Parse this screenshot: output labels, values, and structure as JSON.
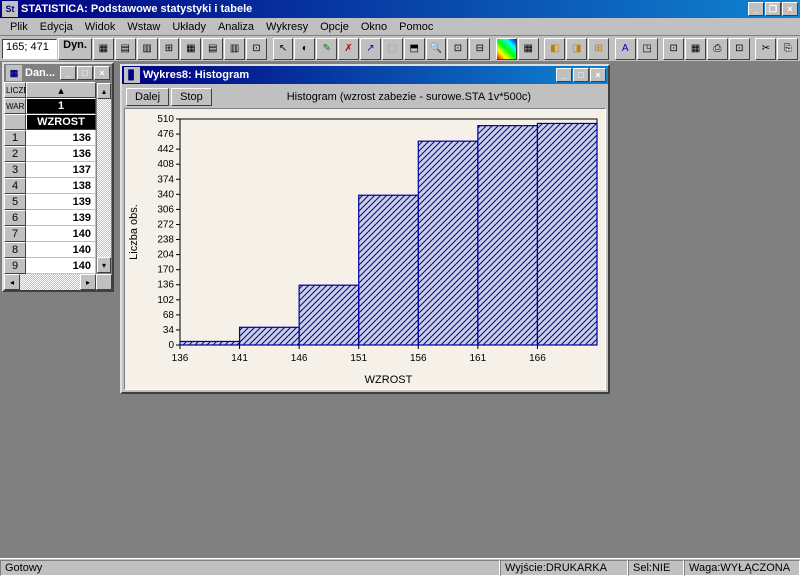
{
  "app": {
    "title": "STATISTICA: Podstawowe statystyki i tabele",
    "icon_label": "St"
  },
  "menu": {
    "items": [
      "Plik",
      "Edycja",
      "Widok",
      "Wstaw",
      "Układy",
      "Analiza",
      "Wykresy",
      "Opcje",
      "Okno",
      "Pomoc"
    ]
  },
  "toolbar": {
    "coord": "165; 471",
    "dyn": "Dyn."
  },
  "datawin": {
    "title": "Dan...",
    "corner1": "LICZE",
    "corner2": "WAR",
    "col_num": "1",
    "col_name": "WZROST",
    "rows": [
      {
        "n": "1",
        "v": "136"
      },
      {
        "n": "2",
        "v": "136"
      },
      {
        "n": "3",
        "v": "137"
      },
      {
        "n": "4",
        "v": "138"
      },
      {
        "n": "5",
        "v": "139"
      },
      {
        "n": "6",
        "v": "139"
      },
      {
        "n": "7",
        "v": "140"
      },
      {
        "n": "8",
        "v": "140"
      },
      {
        "n": "9",
        "v": "140"
      }
    ]
  },
  "chartwin": {
    "title": "Wykres8: Histogram",
    "btn_dalej": "Dalej",
    "btn_stop": "Stop",
    "subtitle": "Histogram (wzrost zabezie - surowe.STA 1v*500c)",
    "ylabel": "Liczba obs.",
    "xlabel": "WZROST",
    "xticks": [
      "136",
      "141",
      "146",
      "151",
      "156",
      "161",
      "166"
    ],
    "yticks": [
      "0",
      "34",
      "68",
      "102",
      "136",
      "170",
      "204",
      "238",
      "272",
      "306",
      "340",
      "374",
      "408",
      "442",
      "476",
      "510"
    ],
    "bars": [
      8,
      40,
      135,
      338,
      460,
      495,
      500
    ],
    "ymax": 510,
    "bar_fill": "#7a8fd4",
    "bar_stroke": "#0000a0",
    "plot_bg": "#f5f1e8"
  },
  "status": {
    "ready": "Gotowy",
    "output": "Wyjście:DRUKARKA",
    "sel": "Sel:NIE",
    "waga": "Waga:WYŁĄCZONA"
  }
}
